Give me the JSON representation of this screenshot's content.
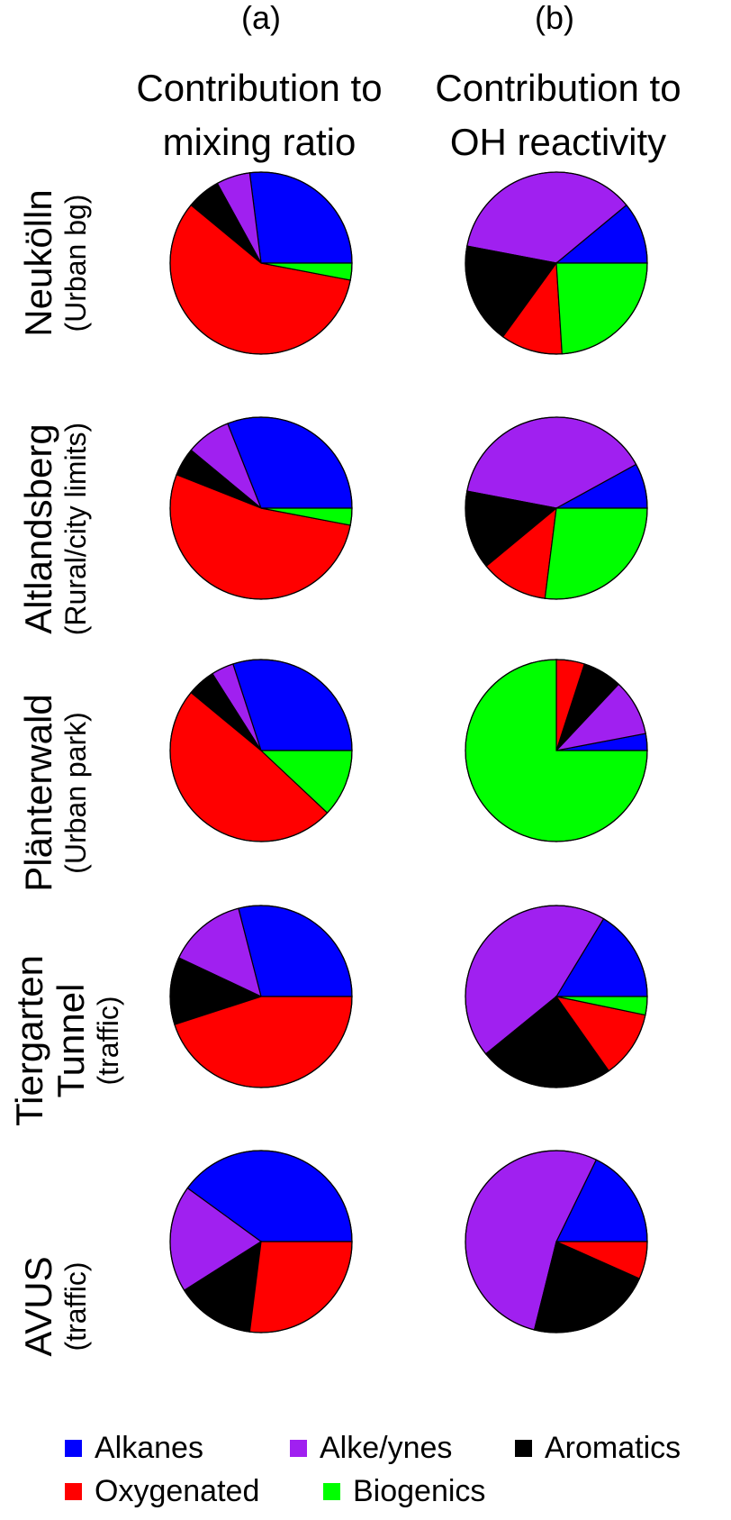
{
  "panels": [
    {
      "letter": "(a)",
      "title": [
        "Contribution to",
        "mixing ratio"
      ]
    },
    {
      "letter": "(b)",
      "title": [
        "Contribution to",
        "OH reactivity"
      ]
    }
  ],
  "colors": {
    "Alkanes": "#0000ff",
    "Alke/ynes": "#a020f0",
    "Aromatics": "#000000",
    "Oxygenated": "#ff0000",
    "Biogenics": "#00ff00"
  },
  "legend": [
    "Alkanes",
    "Alke/ynes",
    "Aromatics",
    "Oxygenated",
    "Biogenics"
  ],
  "sites": [
    {
      "name": "Neukölln",
      "type": "(Urban bg)"
    },
    {
      "name": "Altlandsberg",
      "type": "(Rural/city limits)"
    },
    {
      "name": "Plänterwald",
      "type": "(Urban park)"
    },
    {
      "name": "Tiergarten Tunnel",
      "type": "(traffic)"
    },
    {
      "name": "AVUS",
      "type": "(traffic)"
    }
  ],
  "chart_data": {
    "type": "pie",
    "series_order": [
      "Alkanes",
      "Alke/ynes",
      "Aromatics",
      "Oxygenated",
      "Biogenics"
    ],
    "mixing_ratio": [
      [
        27,
        6,
        6,
        58,
        3
      ],
      [
        31,
        8,
        5,
        53,
        3
      ],
      [
        30,
        4,
        5,
        49,
        12
      ],
      [
        29,
        14,
        12,
        45,
        0
      ],
      [
        40,
        19,
        14,
        27,
        0
      ]
    ],
    "oh_reactivity": [
      [
        11,
        36,
        18,
        11,
        24
      ],
      [
        8,
        39,
        14,
        12,
        27
      ],
      [
        3,
        10,
        7,
        5,
        75
      ],
      [
        15,
        41,
        22,
        11,
        3
      ],
      [
        16,
        48,
        20,
        6,
        0
      ]
    ]
  }
}
